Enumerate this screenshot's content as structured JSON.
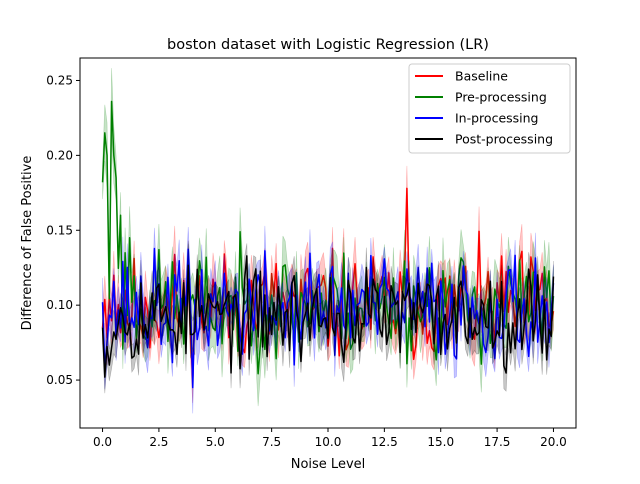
{
  "chart_data": {
    "type": "line",
    "title": "boston dataset with Logistic Regression (LR)",
    "xlabel": "Noise Level",
    "ylabel": "Difference of False Positive",
    "xlim": [
      -1.0,
      21.0
    ],
    "ylim": [
      0.018,
      0.265
    ],
    "x_ticks": [
      0.0,
      2.5,
      5.0,
      7.5,
      10.0,
      12.5,
      15.0,
      17.5,
      20.0
    ],
    "x_tick_labels": [
      "0.0",
      "2.5",
      "5.0",
      "7.5",
      "10.0",
      "12.5",
      "15.0",
      "17.5",
      "20.0"
    ],
    "y_ticks": [
      0.05,
      0.1,
      0.15,
      0.2,
      0.25
    ],
    "y_tick_labels": [
      "0.05",
      "0.10",
      "0.15",
      "0.20",
      "0.25"
    ],
    "grid": false,
    "legend_position": "top-right",
    "x_range": [
      0,
      20
    ],
    "points_per_series": 201,
    "series": [
      {
        "name": "Baseline",
        "color": "#ff0000",
        "mean": 0.099,
        "spread": 0.022,
        "band": 0.014,
        "seed": 11,
        "keypoints": [
          [
            0.0,
            0.085
          ],
          [
            0.3,
            0.105
          ],
          [
            0.5,
            0.12
          ],
          [
            1.0,
            0.11
          ],
          [
            13.5,
            0.178
          ]
        ]
      },
      {
        "name": "Pre-processing",
        "color": "#008000",
        "mean": 0.1,
        "spread": 0.022,
        "band": 0.016,
        "seed": 23,
        "keypoints": [
          [
            0.0,
            0.182
          ],
          [
            0.1,
            0.215
          ],
          [
            0.2,
            0.2
          ],
          [
            0.4,
            0.236
          ],
          [
            0.5,
            0.2
          ],
          [
            0.6,
            0.185
          ],
          [
            0.8,
            0.16
          ],
          [
            1.0,
            0.135
          ],
          [
            1.2,
            0.145
          ]
        ]
      },
      {
        "name": "In-processing",
        "color": "#0000ff",
        "mean": 0.098,
        "spread": 0.022,
        "band": 0.013,
        "seed": 37,
        "keypoints": [
          [
            0.0,
            0.102
          ],
          [
            0.2,
            0.075
          ],
          [
            4.0,
            0.045
          ]
        ]
      },
      {
        "name": "Post-processing",
        "color": "#000000",
        "mean": 0.093,
        "spread": 0.02,
        "band": 0.012,
        "seed": 53,
        "keypoints": [
          [
            0.0,
            0.085
          ],
          [
            0.1,
            0.052
          ],
          [
            0.3,
            0.06
          ]
        ]
      }
    ]
  }
}
